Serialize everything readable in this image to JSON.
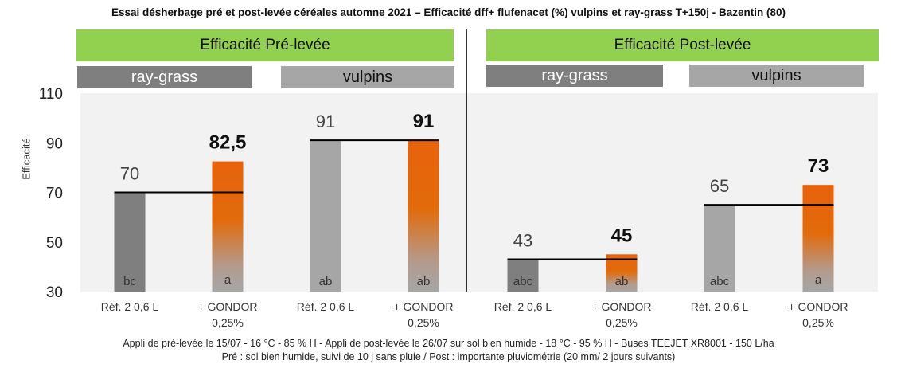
{
  "title": "Essai désherbage pré et post-levée céréales automne 2021 – Efficacité dff+ flufenacet (%) vulpins et ray-grass T+150j - Bazentin (80)",
  "sections": [
    {
      "label": "Efficacité Pré-levée",
      "groups": [
        {
          "label": "ray-grass"
        },
        {
          "label": "vulpins"
        }
      ]
    },
    {
      "label": "Efficacité Post-levée",
      "groups": [
        {
          "label": "ray-grass"
        },
        {
          "label": "vulpins"
        }
      ]
    }
  ],
  "footer": {
    "line1": "Appli de pré-levée le 15/07 - 16 °C - 85 % H - Appli de post-levée le 26/07 sur sol bien humide - 18 °C - 95 % H  - Buses TEEJET XR8001 - 150 L/ha",
    "line2": "Pré : sol bien humide, suivi de 10 j sans pluie / Post : importante pluviométrie (20 mm/ 2 jours suivants)"
  },
  "colors": {
    "dark_grey": "#7f7f7f",
    "light_grey": "#a6a6a6",
    "orange": "#e26b0a",
    "green": "#92d050",
    "reference_line": "#000000"
  },
  "chart_data": {
    "type": "bar",
    "ylabel": "Efficacité",
    "ylim": [
      30,
      110
    ],
    "yticks": [
      30,
      50,
      70,
      90,
      110
    ],
    "grid": false,
    "categories": [
      "Réf. 2  0,6 L",
      "+ GONDOR 0,25%",
      "Réf. 2  0,6 L",
      "+ GONDOR 0,25%",
      "Réf. 2  0,6 L",
      "+ GONDOR 0,25%",
      "Réf. 2  0,6 L",
      "+ GONDOR 0,25%"
    ],
    "category_lines": [
      [
        "Réf. 2  0,6 L"
      ],
      [
        "+ GONDOR",
        "0,25%"
      ],
      [
        "Réf. 2  0,6 L"
      ],
      [
        "+ GONDOR",
        "0,25%"
      ],
      [
        "Réf. 2  0,6 L"
      ],
      [
        "+ GONDOR",
        "0,25%"
      ],
      [
        "Réf. 2  0,6 L"
      ],
      [
        "+ GONDOR",
        "0,25%"
      ]
    ],
    "values": [
      70,
      82.5,
      91,
      91,
      43,
      45,
      65,
      73
    ],
    "value_labels": [
      "70",
      "82,5",
      "91",
      "91",
      "43",
      "45",
      "65",
      "73"
    ],
    "value_label_bold": [
      false,
      true,
      false,
      true,
      false,
      true,
      false,
      true
    ],
    "stat_groups": [
      "bc",
      "a",
      "ab",
      "ab",
      "abc",
      "ab",
      "abc",
      "a"
    ],
    "bar_colors": [
      "dark",
      "orange",
      "light",
      "orange",
      "dark",
      "orange",
      "light",
      "orange"
    ],
    "reference_lines": [
      70,
      91,
      43,
      65
    ]
  }
}
